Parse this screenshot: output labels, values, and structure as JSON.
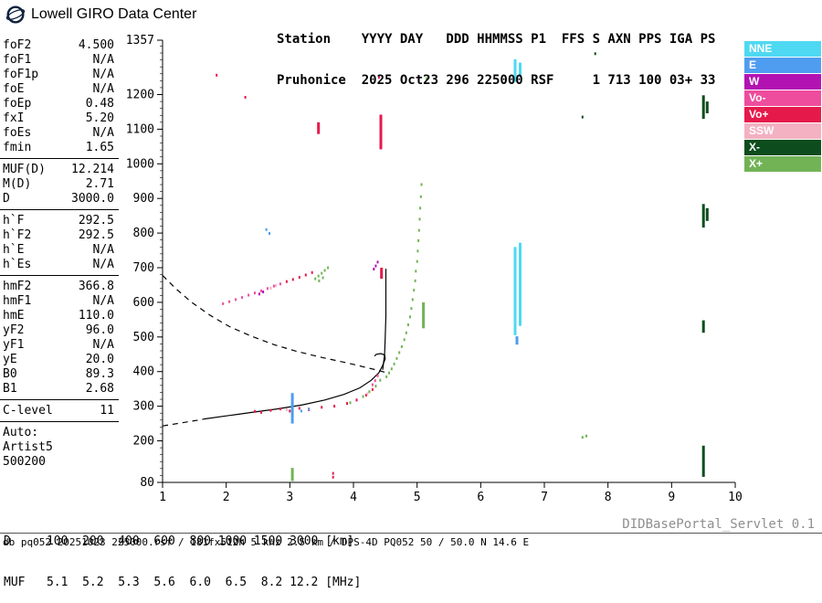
{
  "header": {
    "brand": "Lowell GIRO Data Center",
    "line1": "Station    YYYY DAY   DDD HHMMSS P1  FFS S AXN PPS IGA PS",
    "line2": "Pruhonice  2025 Oct23 296 225000 RSF     1 713 100 03+ 33"
  },
  "parameters": {
    "groups": [
      {
        "rows": [
          [
            "foF2",
            "4.500"
          ],
          [
            "foF1",
            "N/A"
          ],
          [
            "foF1p",
            "N/A"
          ],
          [
            "foE",
            "N/A"
          ],
          [
            "foEp",
            "0.48"
          ],
          [
            "fxI",
            "5.20"
          ],
          [
            "foEs",
            "N/A"
          ],
          [
            "fmin",
            "1.65"
          ]
        ]
      },
      {
        "rows": [
          [
            "MUF(D)",
            "12.214"
          ],
          [
            "M(D)",
            "2.71"
          ],
          [
            "D",
            "3000.0"
          ]
        ]
      },
      {
        "rows": [
          [
            "h`F",
            "292.5"
          ],
          [
            "h`F2",
            "292.5"
          ],
          [
            "h`E",
            "N/A"
          ],
          [
            "h`Es",
            "N/A"
          ]
        ]
      },
      {
        "rows": [
          [
            "hmF2",
            "366.8"
          ],
          [
            "hmF1",
            "N/A"
          ],
          [
            "hmE",
            "110.0"
          ],
          [
            "yF2",
            "96.0"
          ],
          [
            "yF1",
            "N/A"
          ],
          [
            "yE",
            "20.0"
          ],
          [
            "B0",
            "89.3"
          ],
          [
            "B1",
            "2.68"
          ]
        ]
      },
      {
        "rows": [
          [
            "C-level",
            "11"
          ]
        ]
      },
      {
        "rows": [
          [
            "Auto:",
            ""
          ],
          [
            "Artist5",
            ""
          ],
          [
            "500200",
            ""
          ]
        ]
      }
    ]
  },
  "footer": {
    "d_line": "D     100  200  400  600  800 1000 1500 3000 [km]",
    "muf_line": "MUF   5.1  5.2  5.3  5.6  6.0  6.5  8.2 12.2 [MHz]",
    "servlet": "DIDBasePortal_Servlet 0.1",
    "info": "db pq052 20251023 225000.rsf / 181fx512h 5 kHz 2.5 km / DPS-4D PQ052 50 / 50.0 N 14.6 E"
  },
  "chart_data": {
    "type": "scatter",
    "title": "",
    "xlabel": "[MHz]",
    "ylabel": "[km]",
    "xlim": [
      1,
      10
    ],
    "ylim": [
      80,
      1357
    ],
    "x_ticks": [
      1,
      2,
      3,
      4,
      5,
      6,
      7,
      8,
      9,
      10
    ],
    "y_ticks": [
      80,
      200,
      300,
      400,
      500,
      600,
      700,
      800,
      900,
      1000,
      1100,
      1200,
      1357
    ],
    "grid": false,
    "legend_position": "top-right",
    "legend": [
      {
        "label": "NNE",
        "color": "#4fd8f2"
      },
      {
        "label": "E",
        "color": "#4f9df0"
      },
      {
        "label": "W",
        "color": "#b312b3"
      },
      {
        "label": "Vo-",
        "color": "#ee4d9d"
      },
      {
        "label": "Vo+",
        "color": "#e6194b"
      },
      {
        "label": "SSW",
        "color": "#f3b1c2"
      },
      {
        "label": "X-",
        "color": "#0d4d1d"
      },
      {
        "label": "X+",
        "color": "#72b356"
      }
    ],
    "curves": [
      {
        "style": "dashed",
        "points": [
          [
            1.0,
            678
          ],
          [
            1.2,
            641
          ],
          [
            1.45,
            601
          ],
          [
            1.75,
            562
          ],
          [
            2.05,
            530
          ],
          [
            2.4,
            502
          ],
          [
            2.75,
            478
          ],
          [
            3.1,
            459
          ],
          [
            3.5,
            441
          ],
          [
            3.9,
            425
          ],
          [
            4.2,
            412
          ],
          [
            4.4,
            403
          ],
          [
            4.5,
            398
          ]
        ]
      },
      {
        "style": "dashed",
        "points": [
          [
            1.0,
            243
          ],
          [
            1.3,
            252
          ],
          [
            1.6,
            261
          ],
          [
            1.65,
            263
          ]
        ]
      },
      {
        "style": "solid",
        "points": [
          [
            1.65,
            263
          ],
          [
            2.0,
            272
          ],
          [
            2.4,
            282
          ],
          [
            2.8,
            292
          ],
          [
            3.2,
            304
          ],
          [
            3.55,
            318
          ],
          [
            3.85,
            334
          ],
          [
            4.1,
            353
          ],
          [
            4.28,
            375
          ],
          [
            4.4,
            397
          ],
          [
            4.46,
            418
          ],
          [
            4.5,
            437
          ],
          [
            4.49,
            448
          ],
          [
            4.43,
            452
          ],
          [
            4.36,
            450
          ],
          [
            4.33,
            445
          ]
        ]
      },
      {
        "style": "solid",
        "points": [
          [
            4.46,
            405
          ],
          [
            4.49,
            450
          ],
          [
            4.5,
            500
          ],
          [
            4.51,
            560
          ],
          [
            4.51,
            620
          ],
          [
            4.51,
            680
          ],
          [
            4.51,
            697
          ]
        ]
      }
    ],
    "echo_bars": [
      {
        "color": "NNE",
        "f": 6.54,
        "h0": 505,
        "h1": 760
      },
      {
        "color": "NNE",
        "f": 6.62,
        "h0": 532,
        "h1": 772
      },
      {
        "color": "NNE",
        "f": 6.54,
        "h0": 1236,
        "h1": 1302
      },
      {
        "color": "NNE",
        "f": 6.62,
        "h0": 1250,
        "h1": 1292
      },
      {
        "color": "E",
        "f": 3.04,
        "h0": 250,
        "h1": 338
      },
      {
        "color": "E",
        "f": 6.57,
        "h0": 478,
        "h1": 502
      },
      {
        "color": "Vo+",
        "f": 4.43,
        "h0": 1042,
        "h1": 1142
      },
      {
        "color": "Vo+",
        "f": 3.45,
        "h0": 1086,
        "h1": 1120
      },
      {
        "color": "Vo+",
        "f": 4.44,
        "h0": 668,
        "h1": 700
      },
      {
        "color": "X-",
        "f": 9.5,
        "h0": 1130,
        "h1": 1198
      },
      {
        "color": "X-",
        "f": 9.56,
        "h0": 1146,
        "h1": 1180
      },
      {
        "color": "X-",
        "f": 9.5,
        "h0": 816,
        "h1": 884
      },
      {
        "color": "X-",
        "f": 9.56,
        "h0": 835,
        "h1": 872
      },
      {
        "color": "X-",
        "f": 9.5,
        "h0": 512,
        "h1": 548
      },
      {
        "color": "X-",
        "f": 9.5,
        "h0": 96,
        "h1": 186
      },
      {
        "color": "X+",
        "f": 5.1,
        "h0": 525,
        "h1": 600
      },
      {
        "color": "X+",
        "f": 3.04,
        "h0": 84,
        "h1": 122
      }
    ],
    "echo_points": [
      {
        "color": "X+",
        "pts": [
          [
            4.52,
            385
          ],
          [
            4.56,
            396
          ],
          [
            4.6,
            408
          ],
          [
            4.64,
            422
          ],
          [
            4.68,
            438
          ],
          [
            4.72,
            455
          ],
          [
            4.76,
            472
          ],
          [
            4.8,
            492
          ],
          [
            4.83,
            512
          ],
          [
            4.86,
            535
          ],
          [
            4.89,
            558
          ],
          [
            4.91,
            582
          ],
          [
            4.93,
            608
          ],
          [
            4.95,
            635
          ],
          [
            4.97,
            662
          ],
          [
            4.98,
            690
          ],
          [
            5.0,
            718
          ],
          [
            5.01,
            748
          ],
          [
            5.02,
            778
          ],
          [
            5.03,
            808
          ],
          [
            5.04,
            840
          ],
          [
            5.05,
            872
          ],
          [
            5.06,
            905
          ],
          [
            5.07,
            940
          ]
        ]
      },
      {
        "color": "X+",
        "pts": [
          [
            3.95,
            310
          ],
          [
            4.05,
            318
          ],
          [
            4.15,
            328
          ],
          [
            4.25,
            342
          ],
          [
            4.35,
            358
          ],
          [
            4.42,
            375
          ]
        ]
      },
      {
        "color": "Vo+",
        "pts": [
          [
            2.45,
            285
          ],
          [
            2.55,
            282
          ],
          [
            2.7,
            288
          ],
          [
            2.85,
            292
          ],
          [
            3.0,
            286
          ],
          [
            3.15,
            294
          ],
          [
            3.3,
            290
          ],
          [
            3.5,
            297
          ],
          [
            3.7,
            300
          ],
          [
            3.9,
            308
          ],
          [
            4.05,
            318
          ],
          [
            4.2,
            332
          ],
          [
            4.3,
            348
          ]
        ]
      },
      {
        "color": "Vo-",
        "pts": [
          [
            1.95,
            596
          ],
          [
            2.05,
            602
          ],
          [
            2.15,
            608
          ],
          [
            2.25,
            614
          ],
          [
            2.35,
            621
          ],
          [
            2.45,
            627
          ],
          [
            2.55,
            633
          ],
          [
            2.65,
            640
          ],
          [
            2.75,
            647
          ],
          [
            2.85,
            653
          ]
        ]
      },
      {
        "color": "Vo+",
        "pts": [
          [
            2.95,
            660
          ],
          [
            3.05,
            666
          ],
          [
            3.15,
            672
          ],
          [
            3.25,
            679
          ],
          [
            3.35,
            686
          ]
        ]
      },
      {
        "color": "X+",
        "pts": [
          [
            3.4,
            668
          ],
          [
            3.45,
            676
          ],
          [
            3.5,
            684
          ],
          [
            3.55,
            692
          ],
          [
            3.6,
            700
          ],
          [
            3.46,
            662
          ],
          [
            3.52,
            671
          ]
        ]
      },
      {
        "color": "W",
        "pts": [
          [
            4.35,
            705
          ],
          [
            4.38,
            716
          ],
          [
            4.32,
            696
          ],
          [
            2.52,
            624
          ],
          [
            2.58,
            630
          ]
        ]
      },
      {
        "color": "X-",
        "pts": [
          [
            7.8,
            1318
          ],
          [
            7.6,
            1135
          ]
        ]
      },
      {
        "color": "Vo+",
        "pts": [
          [
            1.85,
            1256
          ],
          [
            2.3,
            1192
          ],
          [
            4.4,
            1250
          ],
          [
            3.68,
            95
          ],
          [
            3.68,
            106
          ]
        ]
      },
      {
        "color": "X+",
        "pts": [
          [
            5.15,
            1246
          ],
          [
            7.6,
            210
          ],
          [
            7.66,
            214
          ]
        ]
      },
      {
        "color": "E",
        "pts": [
          [
            2.63,
            810
          ],
          [
            2.68,
            799
          ],
          [
            3.3,
            292
          ],
          [
            3.18,
            286
          ]
        ]
      },
      {
        "color": "SSW",
        "pts": [
          [
            2.7,
            641
          ],
          [
            2.78,
            648
          ],
          [
            4.22,
            336
          ],
          [
            2.95,
            290
          ]
        ]
      },
      {
        "color": "Vo-",
        "pts": [
          [
            4.3,
            362
          ],
          [
            4.34,
            374
          ],
          [
            4.38,
            388
          ]
        ]
      }
    ]
  }
}
